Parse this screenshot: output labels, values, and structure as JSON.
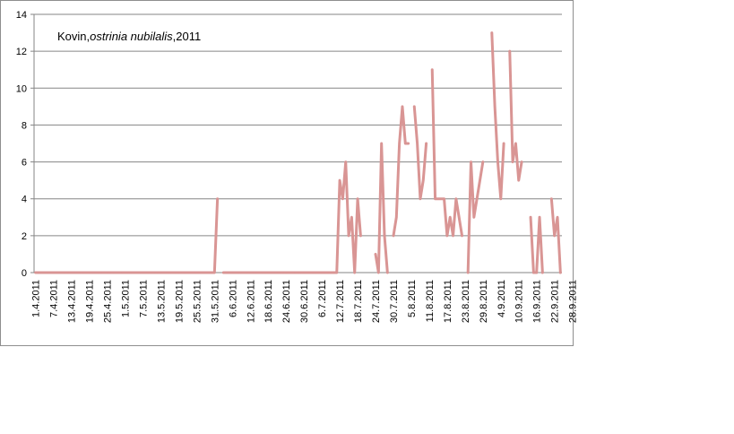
{
  "chart_data": {
    "type": "line",
    "title_prefix": "Kovin,",
    "title_species": "ostrinia nubilalis",
    "title_suffix": ",2011",
    "xlabel": "",
    "ylabel": "",
    "ylim": [
      0,
      14
    ],
    "yticks": [
      "0",
      "2",
      "4",
      "6",
      "8",
      "10",
      "12",
      "14"
    ],
    "grid": true,
    "legend": "none",
    "series_color": "#d99594",
    "start_date": "1.4.2011",
    "xtick_labels": [
      "1.4.2011",
      "7.4.2011",
      "13.4.2011",
      "19.4.2011",
      "25.4.2011",
      "1.5.2011",
      "7.5.2011",
      "13.5.2011",
      "19.5.2011",
      "25.5.2011",
      "31.5.2011",
      "6.6.2011",
      "12.6.2011",
      "18.6.2011",
      "24.6.2011",
      "30.6.2011",
      "6.7.2011",
      "12.7.2011",
      "18.7.2011",
      "24.7.2011",
      "30.7.2011",
      "5.8.2011",
      "11.8.2011",
      "17.8.2011",
      "23.8.2011",
      "29.8.2011",
      "4.9.2011",
      "10.9.2011",
      "16.9.2011",
      "22.9.2011",
      "28.9.2011"
    ],
    "values": [
      0,
      0,
      0,
      0,
      0,
      0,
      0,
      0,
      0,
      0,
      0,
      0,
      0,
      0,
      0,
      0,
      0,
      0,
      0,
      0,
      0,
      0,
      0,
      0,
      0,
      0,
      0,
      0,
      0,
      0,
      0,
      0,
      0,
      0,
      0,
      0,
      0,
      0,
      0,
      0,
      0,
      0,
      0,
      0,
      0,
      0,
      0,
      0,
      0,
      0,
      0,
      0,
      0,
      0,
      0,
      0,
      0,
      0,
      0,
      0,
      0,
      4,
      null,
      0,
      0,
      0,
      0,
      0,
      0,
      0,
      0,
      0,
      0,
      0,
      0,
      0,
      0,
      0,
      0,
      0,
      0,
      0,
      0,
      0,
      0,
      0,
      0,
      0,
      0,
      0,
      0,
      0,
      0,
      0,
      0,
      0,
      0,
      0,
      0,
      0,
      0,
      0,
      5,
      4,
      6,
      2,
      3,
      0,
      4,
      2,
      null,
      null,
      null,
      null,
      1,
      0,
      7,
      2,
      0,
      null,
      2,
      3,
      7,
      9,
      7,
      7,
      null,
      9,
      7,
      4,
      5,
      7,
      null,
      11,
      4,
      4,
      4,
      4,
      2,
      3,
      2,
      4,
      3,
      2,
      null,
      0,
      6,
      3,
      4,
      5,
      6,
      null,
      null,
      13,
      9,
      6,
      4,
      7,
      null,
      12,
      6,
      7,
      5,
      6,
      null,
      null,
      3,
      0,
      0,
      3,
      0,
      null,
      null,
      4,
      2,
      3,
      0
    ]
  }
}
